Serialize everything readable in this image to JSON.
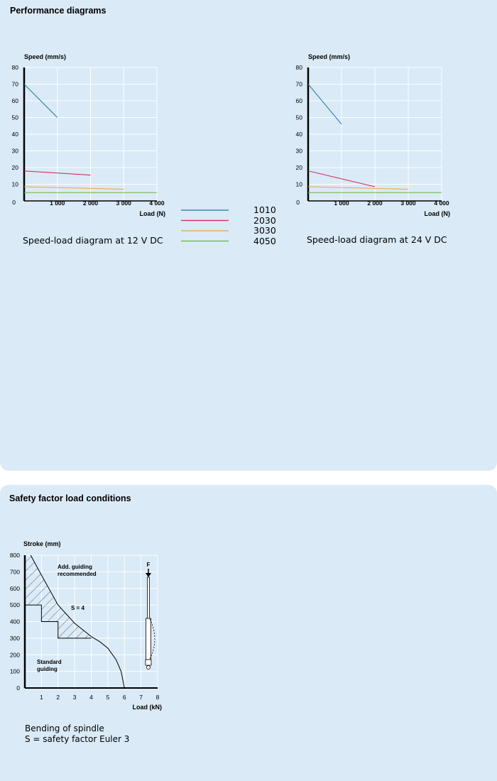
{
  "performance": {
    "title": "Performance diagrams",
    "legend": [
      {
        "name": "1010",
        "color": "#1a7a9a"
      },
      {
        "name": "2030",
        "color": "#c8254e"
      },
      {
        "name": "3030",
        "color": "#e8a83c"
      },
      {
        "name": "4050",
        "color": "#6cb43f"
      }
    ]
  },
  "safety": {
    "title": "Safety factor load conditions",
    "caption_line1": "Bending of spindle",
    "caption_line2": "S = safety factor Euler 3"
  },
  "chart_data": [
    {
      "type": "line",
      "caption": "Speed-load diagram at 12 V DC",
      "ylabel": "Speed (mm/s)",
      "xlabel": "Load (N)",
      "xlim": [
        0,
        4000
      ],
      "ylim": [
        0,
        80
      ],
      "xticks": [
        "1 000",
        "2 000",
        "3 000",
        "4 000"
      ],
      "yticks": [
        "10",
        "20",
        "30",
        "40",
        "50",
        "60",
        "70",
        "80"
      ],
      "origin_label": "0",
      "grid": true,
      "series": [
        {
          "name": "1010",
          "points": [
            [
              0,
              70
            ],
            [
              1000,
              50
            ]
          ]
        },
        {
          "name": "2030",
          "points": [
            [
              0,
              18
            ],
            [
              2000,
              15.5
            ]
          ]
        },
        {
          "name": "3030",
          "points": [
            [
              0,
              8.5
            ],
            [
              3000,
              7
            ]
          ]
        },
        {
          "name": "4050",
          "points": [
            [
              0,
              5
            ],
            [
              4000,
              5
            ]
          ]
        }
      ]
    },
    {
      "type": "line",
      "caption": "Speed-load diagram at 24 V DC",
      "ylabel": "Speed (mm/s)",
      "xlabel": "Load (N)",
      "xlim": [
        0,
        4000
      ],
      "ylim": [
        0,
        80
      ],
      "xticks": [
        "1 000",
        "2 000",
        "3 000",
        "4 000"
      ],
      "yticks": [
        "10",
        "20",
        "30",
        "40",
        "50",
        "60",
        "70",
        "80"
      ],
      "origin_label": "0",
      "grid": true,
      "series": [
        {
          "name": "1010",
          "points": [
            [
              0,
              70
            ],
            [
              1000,
              46
            ]
          ]
        },
        {
          "name": "2030",
          "points": [
            [
              0,
              18
            ],
            [
              2000,
              8.5
            ]
          ]
        },
        {
          "name": "3030",
          "points": [
            [
              0,
              8.5
            ],
            [
              3000,
              7
            ]
          ]
        },
        {
          "name": "4050",
          "points": [
            [
              0,
              5
            ],
            [
              4000,
              5
            ]
          ]
        }
      ]
    },
    {
      "type": "area",
      "ylabel": "Stroke (mm)",
      "xlabel": "Load (kN)",
      "xlim": [
        0,
        8
      ],
      "ylim": [
        0,
        800
      ],
      "xticks": [
        "1",
        "2",
        "3",
        "4",
        "5",
        "6",
        "7",
        "8"
      ],
      "yticks": [
        "0",
        "100",
        "200",
        "300",
        "400",
        "500",
        "600",
        "700",
        "800"
      ],
      "grid": true,
      "annotations": {
        "add_guiding_1": "Add. guiding",
        "add_guiding_2": "recommended",
        "s4": "S = 4",
        "standard_1": "Standard",
        "standard_2": "guiding",
        "force": "F"
      },
      "series": [
        {
          "name": "Euler curve",
          "points": [
            [
              0.35,
              800
            ],
            [
              1,
              680
            ],
            [
              2,
              500
            ],
            [
              3,
              390
            ],
            [
              4,
              310
            ],
            [
              4.5,
              280
            ],
            [
              5,
              240
            ],
            [
              5.5,
              170
            ],
            [
              5.8,
              100
            ],
            [
              6,
              0
            ]
          ]
        },
        {
          "name": "Standard guiding limit",
          "points": [
            [
              0,
              500
            ],
            [
              1,
              500
            ],
            [
              1,
              400
            ],
            [
              2,
              400
            ],
            [
              2,
              300
            ],
            [
              4,
              300
            ]
          ]
        }
      ]
    }
  ]
}
